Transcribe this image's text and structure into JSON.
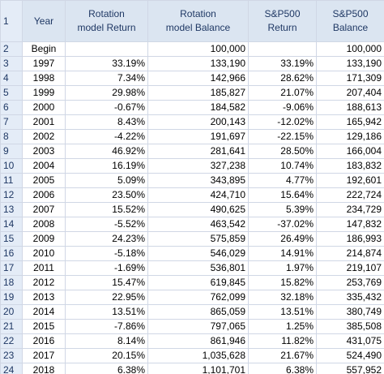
{
  "headers": {
    "year": "Year",
    "rotation_return": [
      "Rotation",
      "model Return"
    ],
    "rotation_balance": [
      "Rotation",
      "model Balance"
    ],
    "sp_return": [
      "S&P500",
      "Return"
    ],
    "sp_balance": [
      "S&P500",
      "Balance"
    ]
  },
  "row_numbers": [
    "1",
    "2",
    "3",
    "4",
    "5",
    "6",
    "7",
    "8",
    "9",
    "10",
    "11",
    "12",
    "13",
    "14",
    "15",
    "16",
    "17",
    "18",
    "19",
    "20",
    "21",
    "22",
    "23",
    "24"
  ],
  "rows": [
    {
      "year": "Begin",
      "rot_ret": "",
      "rot_bal": "100,000",
      "sp_ret": "",
      "sp_bal": "100,000"
    },
    {
      "year": "1997",
      "rot_ret": "33.19%",
      "rot_bal": "133,190",
      "sp_ret": "33.19%",
      "sp_bal": "133,190"
    },
    {
      "year": "1998",
      "rot_ret": "7.34%",
      "rot_bal": "142,966",
      "sp_ret": "28.62%",
      "sp_bal": "171,309"
    },
    {
      "year": "1999",
      "rot_ret": "29.98%",
      "rot_bal": "185,827",
      "sp_ret": "21.07%",
      "sp_bal": "207,404"
    },
    {
      "year": "2000",
      "rot_ret": "-0.67%",
      "rot_bal": "184,582",
      "sp_ret": "-9.06%",
      "sp_bal": "188,613"
    },
    {
      "year": "2001",
      "rot_ret": "8.43%",
      "rot_bal": "200,143",
      "sp_ret": "-12.02%",
      "sp_bal": "165,942"
    },
    {
      "year": "2002",
      "rot_ret": "-4.22%",
      "rot_bal": "191,697",
      "sp_ret": "-22.15%",
      "sp_bal": "129,186"
    },
    {
      "year": "2003",
      "rot_ret": "46.92%",
      "rot_bal": "281,641",
      "sp_ret": "28.50%",
      "sp_bal": "166,004"
    },
    {
      "year": "2004",
      "rot_ret": "16.19%",
      "rot_bal": "327,238",
      "sp_ret": "10.74%",
      "sp_bal": "183,832"
    },
    {
      "year": "2005",
      "rot_ret": "5.09%",
      "rot_bal": "343,895",
      "sp_ret": "4.77%",
      "sp_bal": "192,601"
    },
    {
      "year": "2006",
      "rot_ret": "23.50%",
      "rot_bal": "424,710",
      "sp_ret": "15.64%",
      "sp_bal": "222,724"
    },
    {
      "year": "2007",
      "rot_ret": "15.52%",
      "rot_bal": "490,625",
      "sp_ret": "5.39%",
      "sp_bal": "234,729"
    },
    {
      "year": "2008",
      "rot_ret": "-5.52%",
      "rot_bal": "463,542",
      "sp_ret": "-37.02%",
      "sp_bal": "147,832"
    },
    {
      "year": "2009",
      "rot_ret": "24.23%",
      "rot_bal": "575,859",
      "sp_ret": "26.49%",
      "sp_bal": "186,993"
    },
    {
      "year": "2010",
      "rot_ret": "-5.18%",
      "rot_bal": "546,029",
      "sp_ret": "14.91%",
      "sp_bal": "214,874"
    },
    {
      "year": "2011",
      "rot_ret": "-1.69%",
      "rot_bal": "536,801",
      "sp_ret": "1.97%",
      "sp_bal": "219,107"
    },
    {
      "year": "2012",
      "rot_ret": "15.47%",
      "rot_bal": "619,845",
      "sp_ret": "15.82%",
      "sp_bal": "253,769"
    },
    {
      "year": "2013",
      "rot_ret": "22.95%",
      "rot_bal": "762,099",
      "sp_ret": "32.18%",
      "sp_bal": "335,432"
    },
    {
      "year": "2014",
      "rot_ret": "13.51%",
      "rot_bal": "865,059",
      "sp_ret": "13.51%",
      "sp_bal": "380,749"
    },
    {
      "year": "2015",
      "rot_ret": "-7.86%",
      "rot_bal": "797,065",
      "sp_ret": "1.25%",
      "sp_bal": "385,508"
    },
    {
      "year": "2016",
      "rot_ret": "8.14%",
      "rot_bal": "861,946",
      "sp_ret": "11.82%",
      "sp_bal": "431,075"
    },
    {
      "year": "2017",
      "rot_ret": "20.15%",
      "rot_bal": "1,035,628",
      "sp_ret": "21.67%",
      "sp_bal": "524,490"
    },
    {
      "year": "2018",
      "rot_ret": "6.38%",
      "rot_bal": "1,101,701",
      "sp_ret": "6.38%",
      "sp_bal": "557,952"
    }
  ],
  "colors": {
    "header_fill": "#dbe5f1",
    "header_text": "#1f3864",
    "rownum_fill": "#e4ecf7",
    "gridline": "#d0d7e5"
  }
}
